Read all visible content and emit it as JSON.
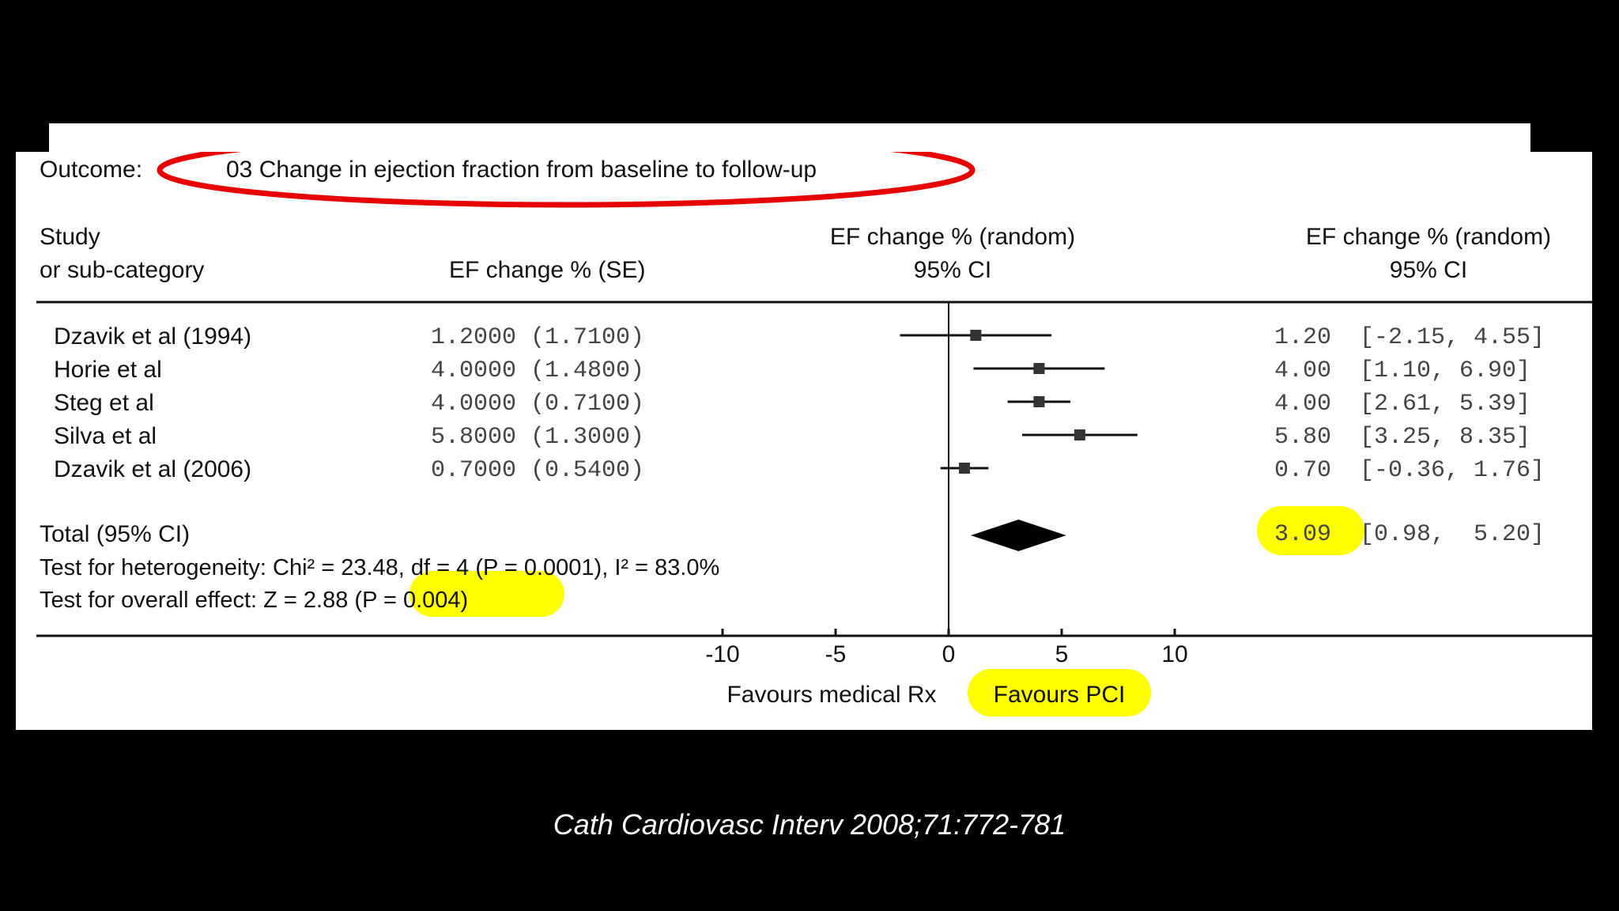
{
  "outcome": {
    "label": "Outcome:",
    "text": "03 Change in ejection fraction from baseline to follow-up"
  },
  "headers": {
    "study_line1": "Study",
    "study_line2": "or sub-category",
    "effect": "EF change % (SE)",
    "plot_line1": "EF change % (random)",
    "plot_line2": "95% CI",
    "ci_line1": "EF change % (random)",
    "ci_line2": "95% CI"
  },
  "chart_data": {
    "type": "forest",
    "xlim": [
      -10,
      10
    ],
    "xticks": [
      "-10",
      "-5",
      "0",
      "5",
      "10"
    ],
    "xtick_values": [
      -10,
      -5,
      0,
      5,
      10
    ],
    "studies": [
      {
        "name": "Dzavik et al (1994)",
        "se_text": "1.2000 (1.7100)",
        "est": 1.2,
        "lo": -2.15,
        "hi": 4.55,
        "est_text": "1.20",
        "ci_text": "[-2.15,  4.55]"
      },
      {
        "name": "Horie et al",
        "se_text": "4.0000 (1.4800)",
        "est": 4.0,
        "lo": 1.1,
        "hi": 6.9,
        "est_text": "4.00",
        "ci_text": "[1.10,  6.90]"
      },
      {
        "name": "Steg et al",
        "se_text": "4.0000 (0.7100)",
        "est": 4.0,
        "lo": 2.61,
        "hi": 5.39,
        "est_text": "4.00",
        "ci_text": "[2.61,  5.39]"
      },
      {
        "name": "Silva et al",
        "se_text": "5.8000 (1.3000)",
        "est": 5.8,
        "lo": 3.25,
        "hi": 8.35,
        "est_text": "5.80",
        "ci_text": "[3.25,  8.35]"
      },
      {
        "name": "Dzavik et al (2006)",
        "se_text": "0.7000 (0.5400)",
        "est": 0.7,
        "lo": -0.36,
        "hi": 1.76,
        "est_text": "0.70",
        "ci_text": "[-0.36,  1.76]"
      }
    ],
    "total": {
      "label": "Total (95% CI)",
      "est": 3.09,
      "lo": 0.98,
      "hi": 5.2,
      "est_text": "3.09",
      "ci_text": "[0.98,  5.20]"
    },
    "heterogeneity": "Test for heterogeneity: Chi² = 23.48, df = 4 (P = 0.0001), I² = 83.0%",
    "overall_effect_prefix": "Test for overall effect: Z = 2.88 ",
    "overall_effect_p": "(P = 0.004)",
    "favours_left": "Favours medical Rx",
    "favours_right": "Favours PCI"
  },
  "colors": {
    "highlight": "#ffff00",
    "ellipse": "#e60000",
    "background": "#000000"
  },
  "citation": "Cath Cardiovasc Interv 2008;71:772-781"
}
